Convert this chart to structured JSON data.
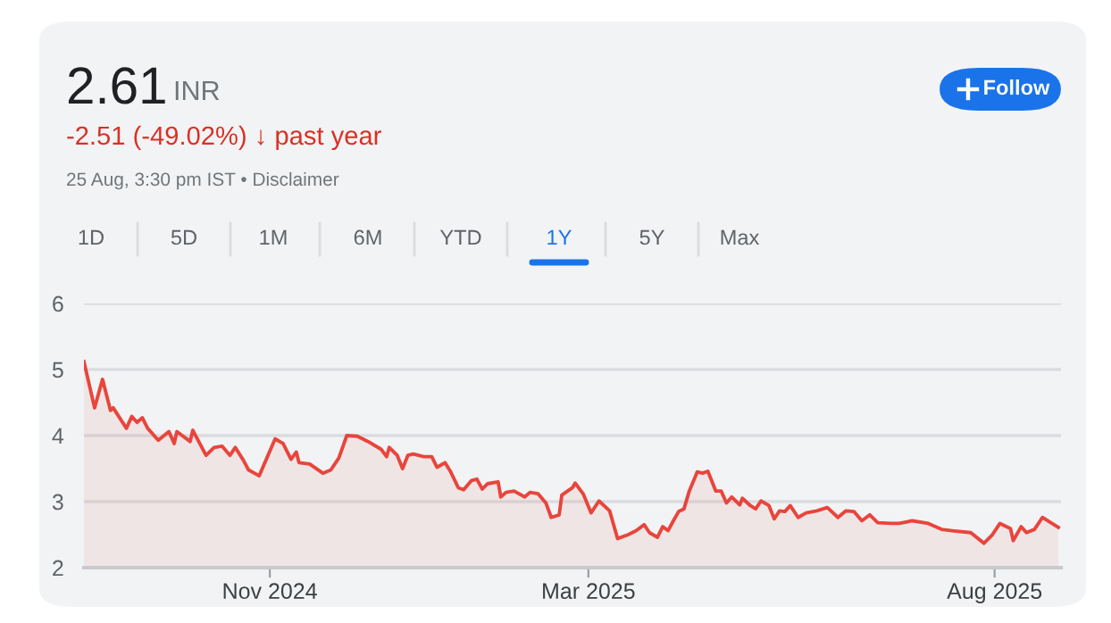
{
  "chart_data": {
    "type": "area",
    "title": "2.61",
    "subtitle": "INR",
    "annotations": [
      "-2.51 (-49.02%) ↓ past year",
      "25 Aug, 3:30 pm IST • Disclaimer",
      "Follow",
      "1D",
      "5D",
      "1M",
      "6M",
      "YTD",
      "1Y",
      "5Y",
      "Max"
    ],
    "color": "#e8453c",
    "x": [
      "2024-08-23",
      "2024-08-27",
      "2024-08-30",
      "2024-09-02",
      "2024-09-03",
      "2024-09-08",
      "2024-09-10",
      "2024-09-12",
      "2024-09-14",
      "2024-09-16",
      "2024-09-20",
      "2024-09-24",
      "2024-09-26",
      "2024-09-27",
      "2024-10-02",
      "2024-10-03",
      "2024-10-08",
      "2024-10-11",
      "2024-10-14",
      "2024-10-17",
      "2024-10-19",
      "2024-10-22",
      "2024-10-24",
      "2024-10-28",
      "2024-11-03",
      "2024-11-06",
      "2024-11-09",
      "2024-11-11",
      "2024-11-12",
      "2024-11-16",
      "2024-11-21",
      "2024-11-24",
      "2024-11-27",
      "2024-11-30",
      "2024-12-04",
      "2024-12-08",
      "2024-12-13",
      "2024-12-15",
      "2024-12-16",
      "2024-12-19",
      "2024-12-21",
      "2024-12-23",
      "2024-12-25",
      "2024-12-29",
      "2025-01-01",
      "2025-01-03",
      "2025-01-06",
      "2025-01-08",
      "2025-01-11",
      "2025-01-13",
      "2025-01-16",
      "2025-01-18",
      "2025-01-20",
      "2025-01-22",
      "2025-01-26",
      "2025-01-27",
      "2025-01-29",
      "2025-02-01",
      "2025-02-05",
      "2025-02-07",
      "2025-02-10",
      "2025-02-13",
      "2025-02-15",
      "2025-02-18",
      "2025-02-19",
      "2025-02-23",
      "2025-02-24",
      "2025-02-27",
      "2025-03-02",
      "2025-03-05",
      "2025-03-09",
      "2025-03-12",
      "2025-03-16",
      "2025-03-19",
      "2025-03-22",
      "2025-03-24",
      "2025-03-27",
      "2025-03-29",
      "2025-03-31",
      "2025-04-02",
      "2025-04-04",
      "2025-04-06",
      "2025-04-08",
      "2025-04-11",
      "2025-04-13",
      "2025-04-15",
      "2025-04-18",
      "2025-04-20",
      "2025-04-22",
      "2025-04-24",
      "2025-04-27",
      "2025-04-28",
      "2025-05-01",
      "2025-05-03",
      "2025-05-05",
      "2025-05-08",
      "2025-05-10",
      "2025-05-12",
      "2025-05-14",
      "2025-05-16",
      "2025-05-19",
      "2025-05-22",
      "2025-05-26",
      "2025-05-30",
      "2025-06-03",
      "2025-06-06",
      "2025-06-09",
      "2025-06-12",
      "2025-06-15",
      "2025-06-18",
      "2025-06-23",
      "2025-06-26",
      "2025-07-01",
      "2025-07-07",
      "2025-07-12",
      "2025-07-16",
      "2025-07-23",
      "2025-07-28",
      "2025-07-31",
      "2025-08-03",
      "2025-08-07",
      "2025-08-08",
      "2025-08-11",
      "2025-08-13",
      "2025-08-16",
      "2025-08-19",
      "2025-08-21",
      "2025-08-25"
    ],
    "values": [
      5.12,
      4.42,
      4.85,
      4.38,
      4.42,
      4.11,
      4.29,
      4.2,
      4.27,
      4.11,
      3.93,
      4.06,
      3.88,
      4.06,
      3.91,
      4.08,
      3.7,
      3.82,
      3.84,
      3.7,
      3.82,
      3.63,
      3.48,
      3.39,
      3.95,
      3.88,
      3.64,
      3.75,
      3.59,
      3.57,
      3.43,
      3.48,
      3.66,
      4.0,
      3.99,
      3.91,
      3.79,
      3.68,
      3.82,
      3.7,
      3.5,
      3.7,
      3.72,
      3.68,
      3.68,
      3.52,
      3.59,
      3.46,
      3.21,
      3.18,
      3.32,
      3.34,
      3.19,
      3.27,
      3.3,
      3.07,
      3.14,
      3.16,
      3.07,
      3.14,
      3.12,
      2.98,
      2.76,
      2.8,
      3.1,
      3.21,
      3.28,
      3.12,
      2.83,
      3.01,
      2.86,
      2.44,
      2.5,
      2.56,
      2.65,
      2.53,
      2.46,
      2.62,
      2.56,
      2.71,
      2.85,
      2.89,
      3.16,
      3.45,
      3.43,
      3.46,
      3.16,
      3.16,
      2.98,
      3.07,
      2.95,
      3.05,
      2.94,
      2.89,
      3.01,
      2.94,
      2.74,
      2.86,
      2.85,
      2.94,
      2.76,
      2.83,
      2.86,
      2.91,
      2.76,
      2.86,
      2.85,
      2.71,
      2.8,
      2.68,
      2.67,
      2.67,
      2.71,
      2.67,
      2.58,
      2.56,
      2.53,
      2.37,
      2.49,
      2.67,
      2.59,
      2.41,
      2.62,
      2.53,
      2.58,
      2.76,
      2.71,
      2.61
    ],
    "xlim": [
      "2024-08-23",
      "2025-08-26"
    ],
    "xticks": [
      {
        "value": "2024-11-01",
        "label": "Nov 2024"
      },
      {
        "value": "2025-03-01",
        "label": "Mar 2025"
      },
      {
        "value": "2025-08-01",
        "label": "Aug 2025"
      }
    ],
    "ylim": [
      2,
      6
    ],
    "yticks": [
      2,
      3,
      4,
      5,
      6
    ],
    "grid": "y"
  }
}
